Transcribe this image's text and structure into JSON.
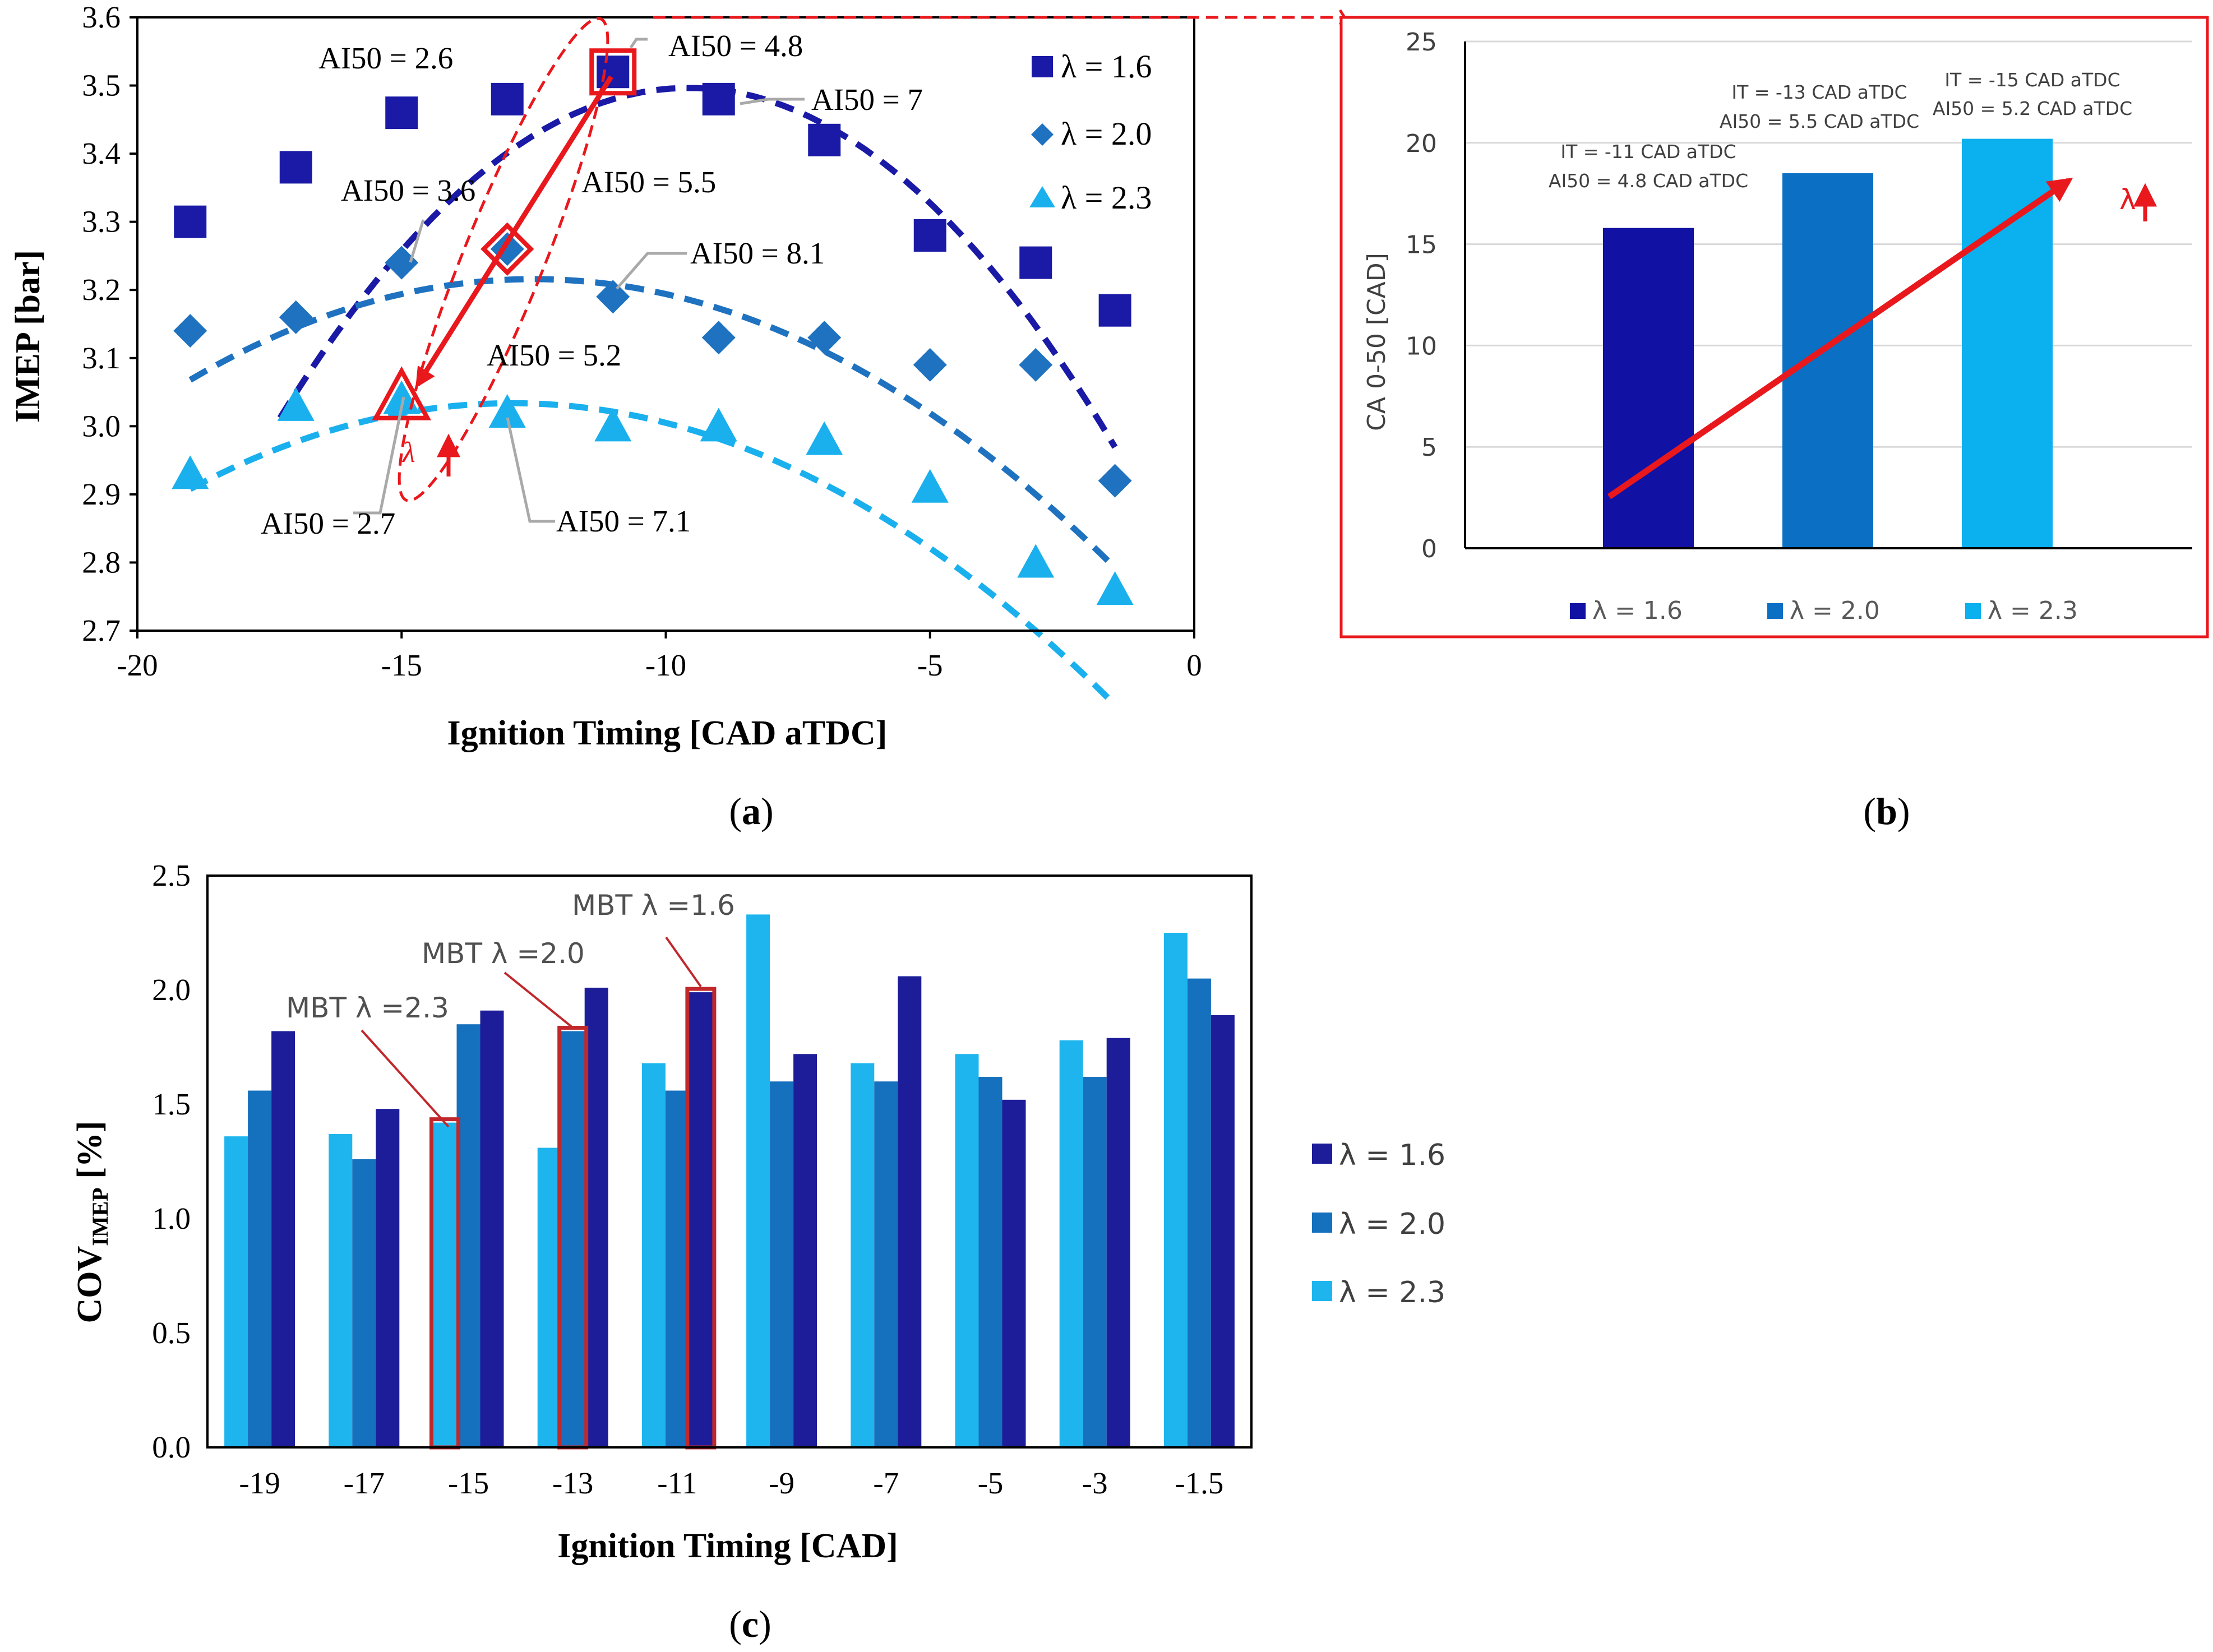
{
  "colors": {
    "lambda_1_6": "#1a1aa6",
    "lambda_2_0": "#1e72c0",
    "lambda_2_3": "#1ab0ee",
    "b_lambda_1_6": "#1111a3",
    "b_lambda_2_0": "#0b6fc4",
    "b_lambda_2_3": "#0bb0ee",
    "c_lambda_1_6": "#1d1d9a",
    "c_lambda_2_0": "#1570bd",
    "c_lambda_2_3": "#1eb5ee",
    "highlight": "#e8181c",
    "mbt_box": "#c0282c",
    "callout_line": "#a9a9a9"
  },
  "chart_data": [
    {
      "id": "a",
      "type": "scatter",
      "panel_label": "a",
      "xlabel": "Ignition Timing [CAD aTDC]",
      "ylabel": "IMEP  [bar]",
      "xlim": [
        -20,
        0
      ],
      "ylim": [
        2.7,
        3.6
      ],
      "x_ticks": [
        -20,
        -15,
        -10,
        -5,
        0
      ],
      "y_ticks": [
        2.7,
        2.8,
        2.9,
        3.0,
        3.1,
        3.2,
        3.3,
        3.4,
        3.5,
        3.6
      ],
      "x_tick_labels": [
        "-20",
        "-15",
        "-10",
        "-5",
        "0"
      ],
      "y_tick_labels": [
        "2.7",
        "2.8",
        "2.9",
        "3.0",
        "3.1",
        "3.2",
        "3.3",
        "3.4",
        "3.5",
        "3.6"
      ],
      "series": [
        {
          "name": "λ = 1.6",
          "marker": "square",
          "color_key": "lambda_1_6",
          "x": [
            -19,
            -17,
            -15,
            -13,
            -11,
            -9,
            -7,
            -5,
            -3,
            -1.5
          ],
          "y": [
            3.3,
            3.38,
            3.46,
            3.48,
            3.52,
            3.48,
            3.42,
            3.28,
            3.24,
            3.17
          ],
          "trend": [
            -0.0081,
            -0.155,
            2.755
          ],
          "trend_range": [
            -17.3,
            -1.5
          ]
        },
        {
          "name": "λ = 2.0",
          "marker": "diamond",
          "color_key": "lambda_2_0",
          "x": [
            -19,
            -17,
            -15,
            -13,
            -11,
            -9,
            -7,
            -5,
            -3,
            -1.5
          ],
          "y": [
            3.14,
            3.16,
            3.24,
            3.26,
            3.19,
            3.13,
            3.13,
            3.09,
            3.09,
            2.92
          ],
          "trend": [
            -0.0035,
            -0.0875,
            2.669
          ],
          "trend_range": [
            -19,
            -1.5
          ]
        },
        {
          "name": "λ = 2.3",
          "marker": "triangle",
          "color_key": "lambda_2_3",
          "x": [
            -19,
            -17,
            -15,
            -13,
            -11,
            -9,
            -7,
            -5,
            -3,
            -1.5
          ],
          "y": [
            2.93,
            3.03,
            3.04,
            3.02,
            3.0,
            3.0,
            2.98,
            2.91,
            2.8,
            2.76
          ],
          "trend": [
            -0.0034,
            -0.0878,
            2.467
          ],
          "trend_range": [
            -19,
            -1.5
          ]
        }
      ],
      "highlighted_points": [
        {
          "series": "λ = 1.6",
          "x": -11,
          "y": 3.52
        },
        {
          "series": "λ = 2.0",
          "x": -13,
          "y": 3.26
        },
        {
          "series": "λ = 2.3",
          "x": -15,
          "y": 3.04
        }
      ],
      "annotations": [
        "AI50 = 2.6",
        "AI50 = 4.8",
        "AI50 = 7",
        "AI50 = 3.6",
        "AI50 = 5.5",
        "AI50 = 8.1",
        "AI50 = 5.2",
        "AI50 = 2.7",
        "AI50 = 7.1"
      ],
      "arrow_label": "λ",
      "legend_position": "top-right"
    },
    {
      "id": "b",
      "type": "bar",
      "panel_label": "b",
      "categories": [
        "λ = 1.6",
        "λ = 2.0",
        "λ = 2.3"
      ],
      "values": [
        15.8,
        18.5,
        20.2
      ],
      "color_keys": [
        "b_lambda_1_6",
        "b_lambda_2_0",
        "b_lambda_2_3"
      ],
      "ylabel": "CA 0-50  [CAD]",
      "xlabel": "",
      "ylim": [
        0,
        25
      ],
      "y_ticks": [
        0,
        5,
        10,
        15,
        20,
        25
      ],
      "y_tick_labels": [
        "0",
        "5",
        "10",
        "15",
        "20",
        "25"
      ],
      "bar_labels": [
        [
          "IT = -11 CAD aTDC",
          "AI50 = 4.8 CAD aTDC"
        ],
        [
          "IT = -13 CAD aTDC",
          "AI50 = 5.5 CAD aTDC"
        ],
        [
          "IT = -15 CAD aTDC",
          "AI50 = 5.2 CAD aTDC"
        ]
      ],
      "arrow_label": "λ",
      "legend_position": "bottom"
    },
    {
      "id": "c",
      "type": "bar",
      "panel_label": "c",
      "categories": [
        "-19",
        "-17",
        "-15",
        "-13",
        "-11",
        "-9",
        "-7",
        "-5",
        "-3",
        "-1.5"
      ],
      "series": [
        {
          "name": "λ = 2.3",
          "color_key": "c_lambda_2_3",
          "values": [
            1.36,
            1.37,
            1.42,
            1.31,
            1.68,
            2.33,
            1.68,
            1.72,
            1.78,
            2.25
          ]
        },
        {
          "name": "λ = 2.0",
          "color_key": "c_lambda_2_0",
          "values": [
            1.56,
            1.26,
            1.85,
            1.82,
            1.56,
            1.6,
            1.6,
            1.62,
            1.62,
            2.05
          ]
        },
        {
          "name": "λ = 1.6",
          "color_key": "c_lambda_1_6",
          "values": [
            1.82,
            1.48,
            1.91,
            2.01,
            1.99,
            1.72,
            2.06,
            1.52,
            1.79,
            1.89
          ]
        }
      ],
      "legend_order": [
        "λ = 1.6",
        "λ = 2.0",
        "λ = 2.3"
      ],
      "xlabel": "Ignition Timing [CAD]",
      "ylabel_main": "COV",
      "ylabel_sub": "IMEP",
      "ylabel_unit": "[%]",
      "ylim": [
        0,
        2.5
      ],
      "y_ticks": [
        0,
        0.5,
        1.0,
        1.5,
        2.0,
        2.5
      ],
      "y_tick_labels": [
        "0.0",
        "0.5",
        "1.0",
        "1.5",
        "2.0",
        "2.5"
      ],
      "mbt_boxes": [
        {
          "label": "MBT λ =1.6",
          "category": "-11",
          "series": "λ = 1.6"
        },
        {
          "label": "MBT λ =2.0",
          "category": "-13",
          "series": "λ = 2.0"
        },
        {
          "label": "MBT λ =2.3",
          "category": "-15",
          "series": "λ = 2.3"
        }
      ],
      "legend_position": "right"
    }
  ]
}
